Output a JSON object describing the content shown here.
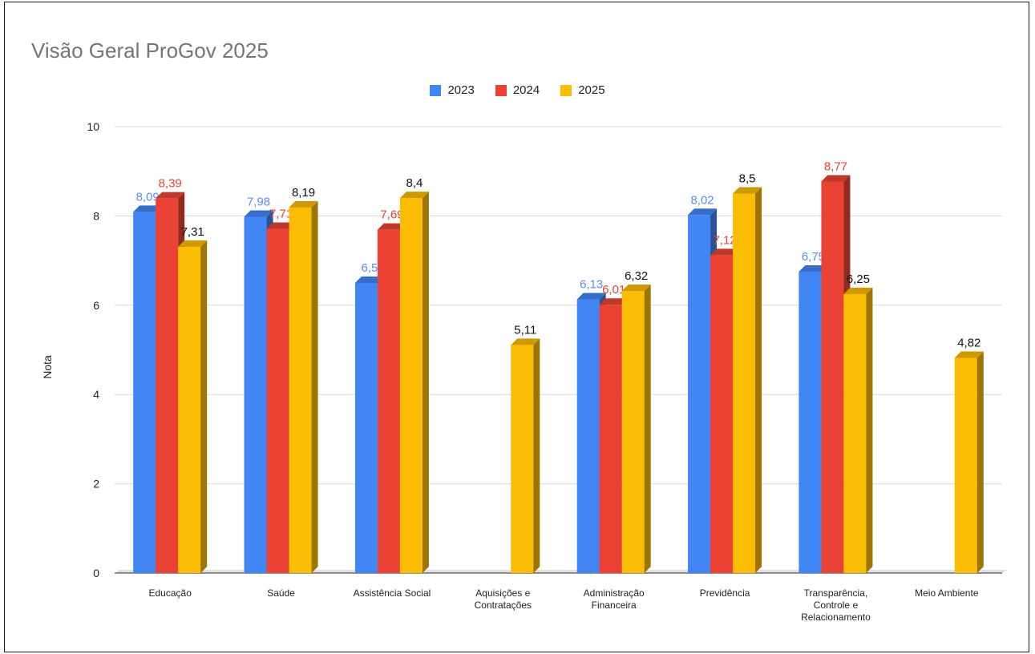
{
  "chart_data": {
    "type": "bar",
    "title": "Visão Geral ProGov 2025",
    "ylabel": "Nota",
    "xlabel": "",
    "ylim": [
      0,
      10
    ],
    "yticks": [
      "0",
      "2",
      "4",
      "6",
      "8",
      "10"
    ],
    "grid": true,
    "legend_position": "top-center",
    "categories": [
      [
        "Educação"
      ],
      [
        "Saúde"
      ],
      [
        "Assistência Social"
      ],
      [
        "Aquisições e",
        "Contratações"
      ],
      [
        "Administração",
        "Financeira"
      ],
      [
        "Previdência"
      ],
      [
        "Transparência,",
        "Controle e",
        "Relacionamento"
      ],
      [
        "Meio Ambiente"
      ]
    ],
    "series": [
      {
        "name": "2023",
        "color": "#4285f4",
        "label_color": "#5b8def",
        "values": [
          8.09,
          7.98,
          6.5,
          null,
          6.13,
          8.02,
          6.75,
          null
        ],
        "labels": [
          "8,09",
          "7,98",
          "6,5",
          "",
          "6,13",
          "8,02",
          "6,75",
          ""
        ]
      },
      {
        "name": "2024",
        "color": "#ea4335",
        "label_color": "#ea4335",
        "values": [
          8.39,
          7.71,
          7.69,
          null,
          6.01,
          7.12,
          8.77,
          null
        ],
        "labels": [
          "8,39",
          "7,71",
          "7,69",
          "",
          "6,01",
          "7,12",
          "8,77",
          ""
        ]
      },
      {
        "name": "2025",
        "color": "#fbbc04",
        "label_color": "#111111",
        "values": [
          7.31,
          8.19,
          8.4,
          5.11,
          6.32,
          8.5,
          6.25,
          4.82
        ],
        "labels": [
          "7,31",
          "8,19",
          "8,4",
          "5,11",
          "6,32",
          "8,5",
          "6,25",
          "4,82"
        ]
      }
    ]
  }
}
